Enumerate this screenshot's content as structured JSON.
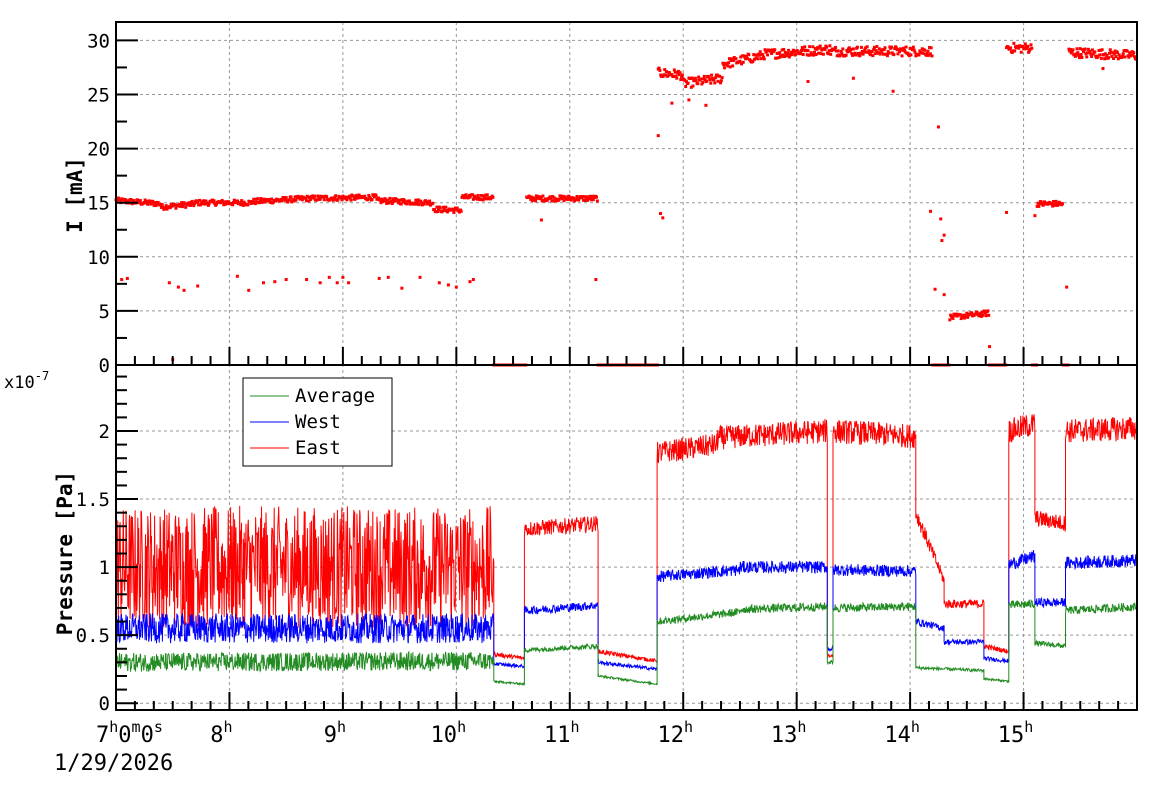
{
  "chart_data": [
    {
      "type": "scatter",
      "ylabel": "I [mA]",
      "ylim": [
        0,
        31.7
      ],
      "yticks": [
        "0",
        "5",
        "10",
        "15",
        "20",
        "25",
        "30"
      ],
      "xlim_hours": [
        7,
        16
      ],
      "grid": true,
      "series": [
        {
          "color": "#ff0000",
          "segments_hours_mA": [
            [
              7.0,
              7.4,
              15.2,
              14.9
            ],
            [
              7.4,
              7.7,
              14.6,
              14.9
            ],
            [
              7.7,
              8.2,
              15.0,
              15.0
            ],
            [
              8.2,
              8.7,
              15.1,
              15.4
            ],
            [
              8.7,
              9.3,
              15.4,
              15.5
            ],
            [
              9.3,
              9.8,
              15.2,
              15.0
            ],
            [
              9.8,
              10.05,
              14.4,
              14.3
            ],
            [
              10.05,
              10.33,
              15.5,
              15.5
            ],
            [
              10.33,
              10.62,
              0,
              0
            ],
            [
              10.62,
              11.25,
              15.4,
              15.4
            ],
            [
              11.25,
              11.78,
              0,
              0
            ],
            [
              11.78,
              12.0,
              27.0,
              26.8
            ],
            [
              12.0,
              12.35,
              26.0,
              26.5
            ],
            [
              12.35,
              12.7,
              27.8,
              28.6
            ],
            [
              12.7,
              13.3,
              28.7,
              29.2
            ],
            [
              13.3,
              14.2,
              29.0,
              29.0
            ],
            [
              14.2,
              14.35,
              0,
              0
            ],
            [
              14.35,
              14.7,
              4.4,
              4.8
            ],
            [
              14.7,
              14.85,
              0,
              0
            ],
            [
              14.85,
              15.08,
              29.3,
              29.3
            ],
            [
              15.08,
              15.12,
              0,
              0
            ],
            [
              15.12,
              15.35,
              14.9,
              14.9
            ],
            [
              15.35,
              15.4,
              0,
              0
            ],
            [
              15.4,
              16.0,
              28.9,
              28.6
            ]
          ],
          "outliers_hours_mA": [
            [
              7.05,
              7.9
            ],
            [
              7.1,
              8.0
            ],
            [
              7.47,
              7.6
            ],
            [
              7.55,
              7.2
            ],
            [
              7.6,
              6.9
            ],
            [
              7.72,
              7.3
            ],
            [
              8.07,
              8.2
            ],
            [
              8.17,
              6.9
            ],
            [
              8.3,
              7.6
            ],
            [
              8.4,
              7.7
            ],
            [
              8.5,
              7.9
            ],
            [
              8.68,
              7.9
            ],
            [
              8.8,
              7.6
            ],
            [
              8.88,
              8.1
            ],
            [
              8.95,
              7.6
            ],
            [
              9.0,
              8.1
            ],
            [
              9.05,
              7.6
            ],
            [
              9.32,
              8.0
            ],
            [
              9.4,
              8.1
            ],
            [
              9.52,
              7.1
            ],
            [
              9.68,
              8.1
            ],
            [
              9.85,
              7.6
            ],
            [
              9.93,
              7.4
            ],
            [
              10.0,
              7.2
            ],
            [
              10.12,
              7.7
            ],
            [
              10.15,
              7.9
            ],
            [
              10.75,
              13.4
            ],
            [
              11.23,
              7.9
            ],
            [
              11.78,
              21.2
            ],
            [
              11.8,
              14.0
            ],
            [
              11.82,
              13.6
            ],
            [
              11.9,
              24.2
            ],
            [
              12.05,
              24.5
            ],
            [
              12.2,
              24.0
            ],
            [
              13.1,
              26.2
            ],
            [
              13.5,
              26.5
            ],
            [
              13.85,
              25.3
            ],
            [
              14.18,
              14.2
            ],
            [
              14.25,
              22.0
            ],
            [
              14.27,
              13.5
            ],
            [
              14.3,
              12.0
            ],
            [
              14.28,
              11.5
            ],
            [
              14.22,
              7.0
            ],
            [
              14.3,
              6.5
            ],
            [
              14.7,
              1.7
            ],
            [
              14.85,
              14.1
            ],
            [
              15.1,
              13.8
            ],
            [
              15.38,
              7.2
            ],
            [
              15.7,
              27.4
            ],
            [
              7.5,
              0.5
            ]
          ]
        }
      ]
    },
    {
      "type": "line",
      "ylabel": "Pressure [Pa]",
      "yscale_label": "x10",
      "yscale_exponent": "-7",
      "ylim": [
        -0.05,
        2.485
      ],
      "yticks": [
        "0",
        "0.5",
        "1",
        "1.5",
        "2"
      ],
      "xlim_hours": [
        7,
        16
      ],
      "xticks": [
        "8",
        "9",
        "10",
        "11",
        "12",
        "13",
        "14",
        "15"
      ],
      "x_first_label": {
        "h": "7",
        "m": "0",
        "s": "0"
      },
      "x_date": "1/29/2026",
      "hour_unit": "h",
      "minute_unit": "m",
      "second_unit": "s",
      "grid": true,
      "legend_placement": "top-left",
      "series": [
        {
          "name": "Average",
          "color": "#228b22",
          "segments_hours": [
            [
              7.0,
              10.33,
              0.3,
              0.31
            ],
            [
              10.33,
              10.6,
              0.16,
              0.14
            ],
            [
              10.6,
              11.25,
              0.39,
              0.42
            ],
            [
              11.25,
              11.77,
              0.2,
              0.14
            ],
            [
              11.77,
              12.5,
              0.6,
              0.67
            ],
            [
              12.5,
              13.27,
              0.69,
              0.71
            ],
            [
              13.27,
              13.32,
              0.3,
              0.3
            ],
            [
              13.32,
              14.05,
              0.7,
              0.71
            ],
            [
              14.05,
              14.65,
              0.26,
              0.24
            ],
            [
              14.65,
              14.87,
              0.18,
              0.16
            ],
            [
              14.87,
              15.1,
              0.72,
              0.73
            ],
            [
              15.1,
              15.37,
              0.44,
              0.42
            ],
            [
              15.37,
              16.0,
              0.68,
              0.71
            ]
          ]
        },
        {
          "name": "West",
          "color": "#0000ff",
          "segments_hours": [
            [
              7.0,
              10.33,
              0.55,
              0.55
            ],
            [
              10.33,
              10.6,
              0.29,
              0.27
            ],
            [
              10.6,
              11.25,
              0.68,
              0.72
            ],
            [
              11.25,
              11.77,
              0.3,
              0.25
            ],
            [
              11.77,
              12.5,
              0.93,
              0.98
            ],
            [
              12.5,
              13.27,
              1.0,
              1.0
            ],
            [
              13.27,
              13.32,
              0.4,
              0.4
            ],
            [
              13.32,
              14.05,
              0.98,
              0.97
            ],
            [
              14.05,
              14.3,
              0.6,
              0.55
            ],
            [
              14.3,
              14.65,
              0.45,
              0.45
            ],
            [
              14.65,
              14.87,
              0.33,
              0.31
            ],
            [
              14.87,
              15.1,
              1.02,
              1.08
            ],
            [
              15.1,
              15.37,
              0.74,
              0.74
            ],
            [
              15.37,
              16.0,
              1.03,
              1.05
            ]
          ]
        },
        {
          "name": "East",
          "color": "#ff0000",
          "segments_hours": [
            [
              7.0,
              10.33,
              1.0,
              1.0
            ],
            [
              10.33,
              10.6,
              0.36,
              0.33
            ],
            [
              10.6,
              11.25,
              1.28,
              1.32
            ],
            [
              11.25,
              11.77,
              0.38,
              0.31
            ],
            [
              11.77,
              12.3,
              1.84,
              1.9
            ],
            [
              12.3,
              13.27,
              1.95,
              2.0
            ],
            [
              13.27,
              13.32,
              0.35,
              0.35
            ],
            [
              13.32,
              14.05,
              2.0,
              1.96
            ],
            [
              14.05,
              14.3,
              1.4,
              0.9
            ],
            [
              14.3,
              14.65,
              0.73,
              0.73
            ],
            [
              14.65,
              14.87,
              0.42,
              0.38
            ],
            [
              14.87,
              15.1,
              2.0,
              2.05
            ],
            [
              15.1,
              15.37,
              1.36,
              1.32
            ],
            [
              15.37,
              16.0,
              2.0,
              2.02
            ]
          ]
        }
      ]
    }
  ]
}
